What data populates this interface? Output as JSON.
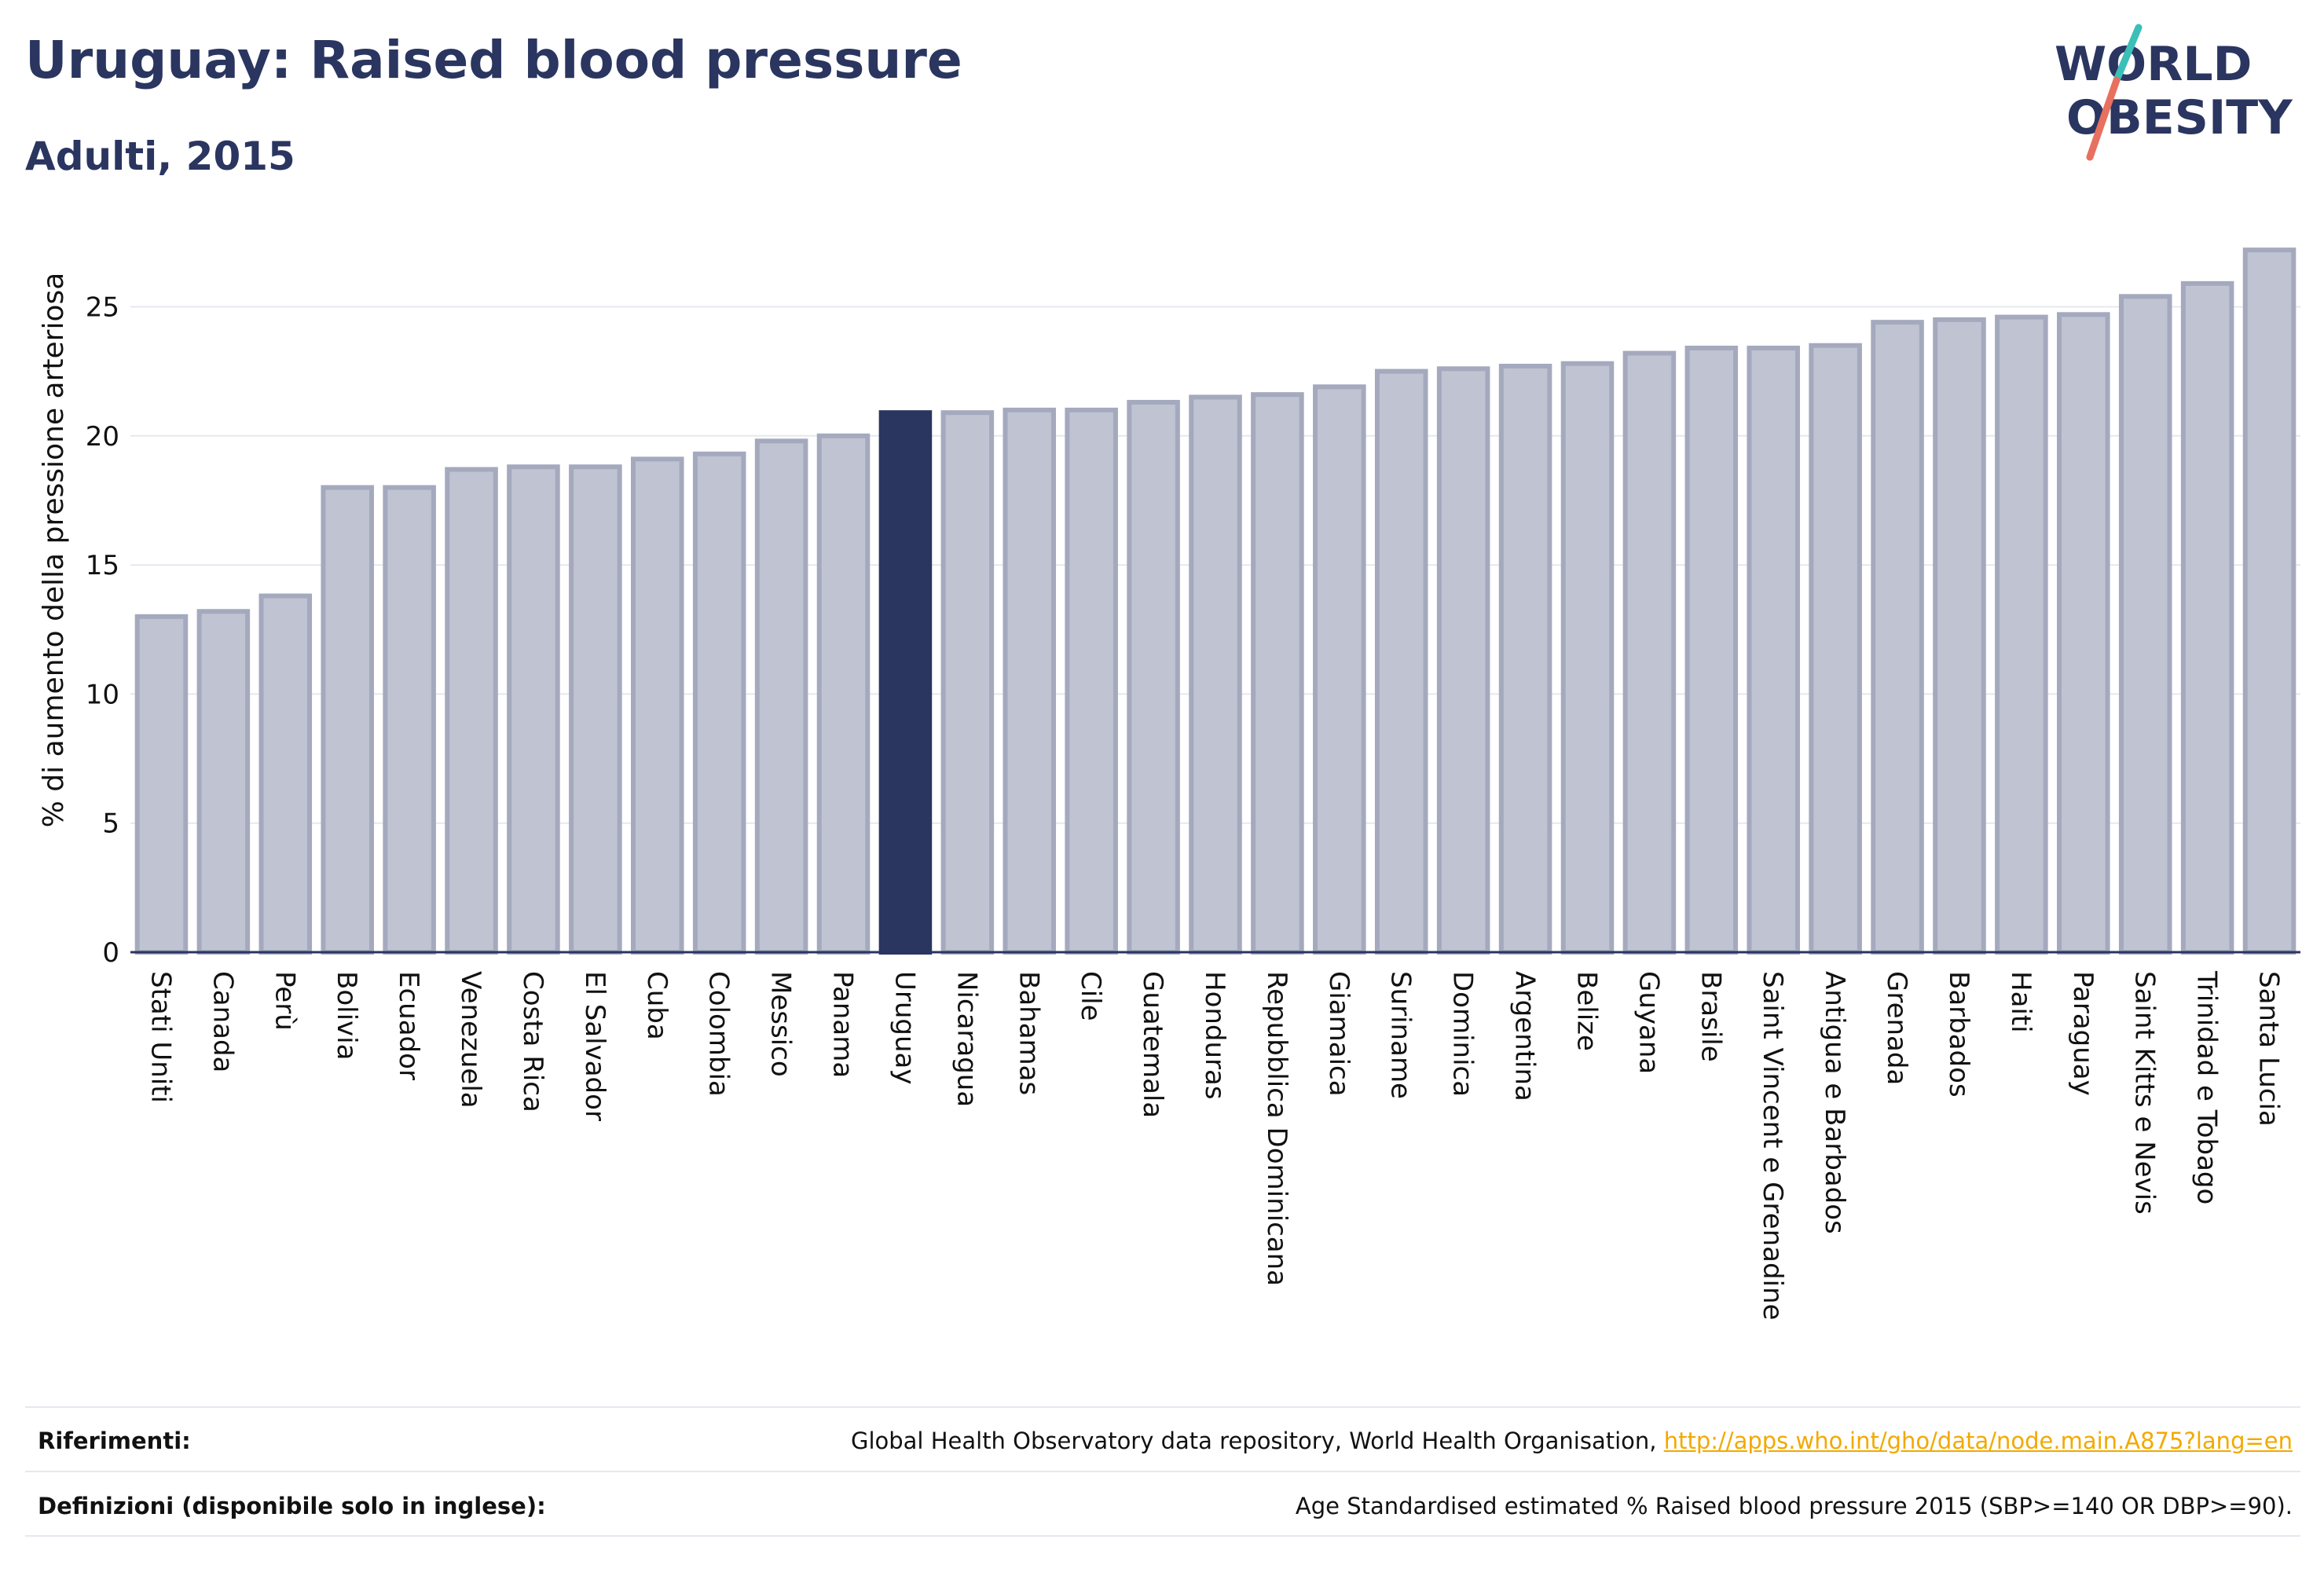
{
  "header": {
    "title": "Uruguay: Raised blood pressure",
    "subtitle": "Adulti, 2015"
  },
  "logo": {
    "line1": "WORLD",
    "line2": "OBESITY",
    "colors": {
      "text": "#2a3560",
      "slash_top": "#3bbfb8",
      "slash_bottom": "#e8705f"
    }
  },
  "chart_data": {
    "type": "bar",
    "ylabel": "% di aumento della pressione arteriosa",
    "xlabel": "",
    "ylim": [
      0,
      27.6
    ],
    "yticks": [
      0,
      5,
      10,
      15,
      20,
      25
    ],
    "grid": true,
    "legend": "none",
    "highlight": "Uruguay",
    "colors": {
      "bar": "#c0c3d1",
      "bar_edge": "#a4a9be",
      "highlight": "#2a3560",
      "axis": "#2a3560",
      "grid": "#e6e8ef"
    },
    "categories": [
      "Stati Uniti",
      "Canada",
      "Perù",
      "Bolivia",
      "Ecuador",
      "Venezuela",
      "Costa Rica",
      "El Salvador",
      "Cuba",
      "Colombia",
      "Messico",
      "Panama",
      "Uruguay",
      "Nicaragua",
      "Bahamas",
      "Cile",
      "Guatemala",
      "Honduras",
      "Repubblica Dominicana",
      "Giamaica",
      "Suriname",
      "Dominica",
      "Argentina",
      "Belize",
      "Guyana",
      "Brasile",
      "Saint Vincent e Grenadine",
      "Antigua e Barbados",
      "Grenada",
      "Barbados",
      "Haiti",
      "Paraguay",
      "Saint Kitts e Nevis",
      "Trinidad e Tobago",
      "Santa Lucia"
    ],
    "values": [
      13.0,
      13.2,
      13.8,
      18.0,
      18.0,
      18.7,
      18.8,
      18.8,
      19.1,
      19.3,
      19.8,
      20.0,
      20.9,
      20.9,
      21.0,
      21.0,
      21.3,
      21.5,
      21.6,
      21.9,
      22.5,
      22.6,
      22.7,
      22.8,
      23.2,
      23.4,
      23.4,
      23.5,
      24.4,
      24.5,
      24.6,
      24.7,
      25.4,
      25.9,
      27.2
    ]
  },
  "footer": {
    "references_label": "Riferimenti:",
    "references_text": "Global Health Observatory data repository, World Health Organisation, ",
    "references_link": "http://apps.who.int/gho/data/node.main.A875?lang=en",
    "definitions_label": "Definizioni (disponibile solo in inglese):",
    "definitions_text": "Age Standardised estimated % Raised blood pressure 2015 (SBP>=140 OR DBP>=90)."
  }
}
